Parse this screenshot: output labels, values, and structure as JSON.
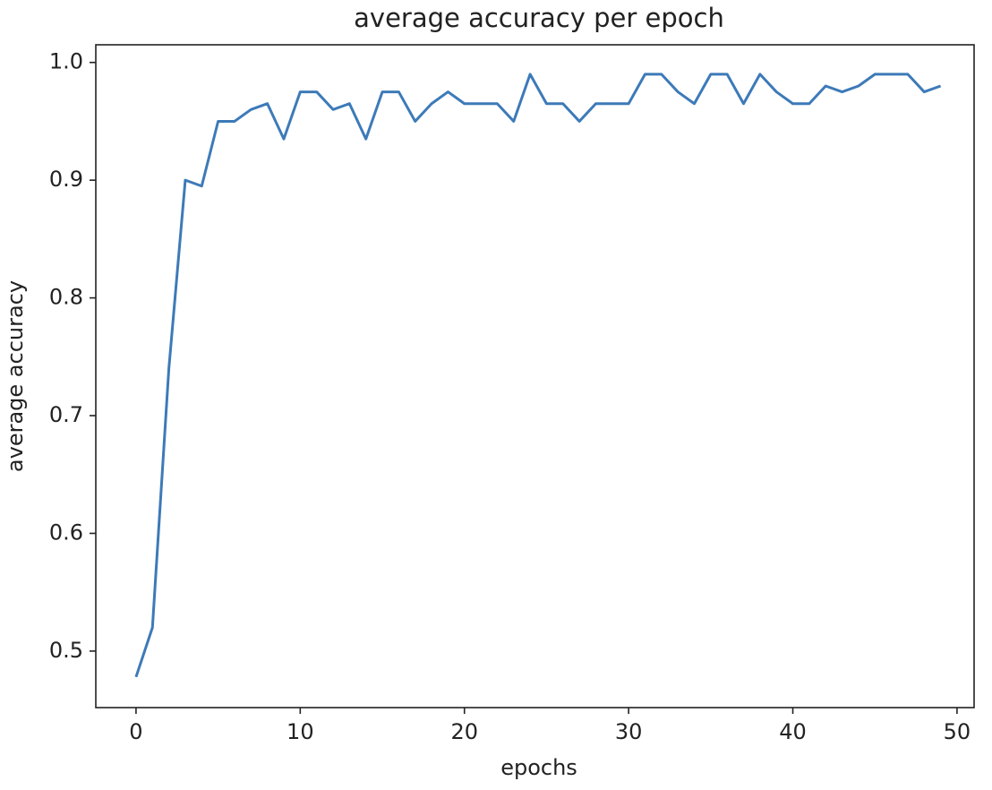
{
  "chart_data": {
    "type": "line",
    "title": "average accuracy per epoch",
    "x_label": "epochs",
    "y_label": "average accuracy",
    "x": [
      0,
      1,
      2,
      3,
      4,
      5,
      6,
      7,
      8,
      9,
      10,
      11,
      12,
      13,
      14,
      15,
      16,
      17,
      18,
      19,
      20,
      21,
      22,
      23,
      24,
      25,
      26,
      27,
      28,
      29,
      30,
      31,
      32,
      33,
      34,
      35,
      36,
      37,
      38,
      39,
      40,
      41,
      42,
      43,
      44,
      45,
      46,
      47,
      48,
      49
    ],
    "series": [
      {
        "color": "#3d7ab8",
        "values": [
          0.478,
          0.52,
          0.74,
          0.9,
          0.895,
          0.95,
          0.95,
          0.96,
          0.965,
          0.935,
          0.975,
          0.975,
          0.96,
          0.965,
          0.935,
          0.975,
          0.975,
          0.95,
          0.965,
          0.975,
          0.965,
          0.965,
          0.965,
          0.95,
          0.99,
          0.965,
          0.965,
          0.95,
          0.965,
          0.965,
          0.965,
          0.99,
          0.99,
          0.975,
          0.965,
          0.99,
          0.99,
          0.965,
          0.99,
          0.975,
          0.965,
          0.965,
          0.98,
          0.975,
          0.98,
          0.99,
          0.99,
          0.99,
          0.975,
          0.98
        ]
      }
    ],
    "xlim": [
      -2.45,
      51.04
    ],
    "ylim": [
      0.452,
      1.015
    ],
    "xticks": [
      0,
      10,
      20,
      30,
      40,
      50
    ],
    "yticks": [
      0.5,
      0.6,
      0.7,
      0.8,
      0.9,
      {
        "value": 1,
        "label": "1.0"
      }
    ],
    "grid": false
  }
}
